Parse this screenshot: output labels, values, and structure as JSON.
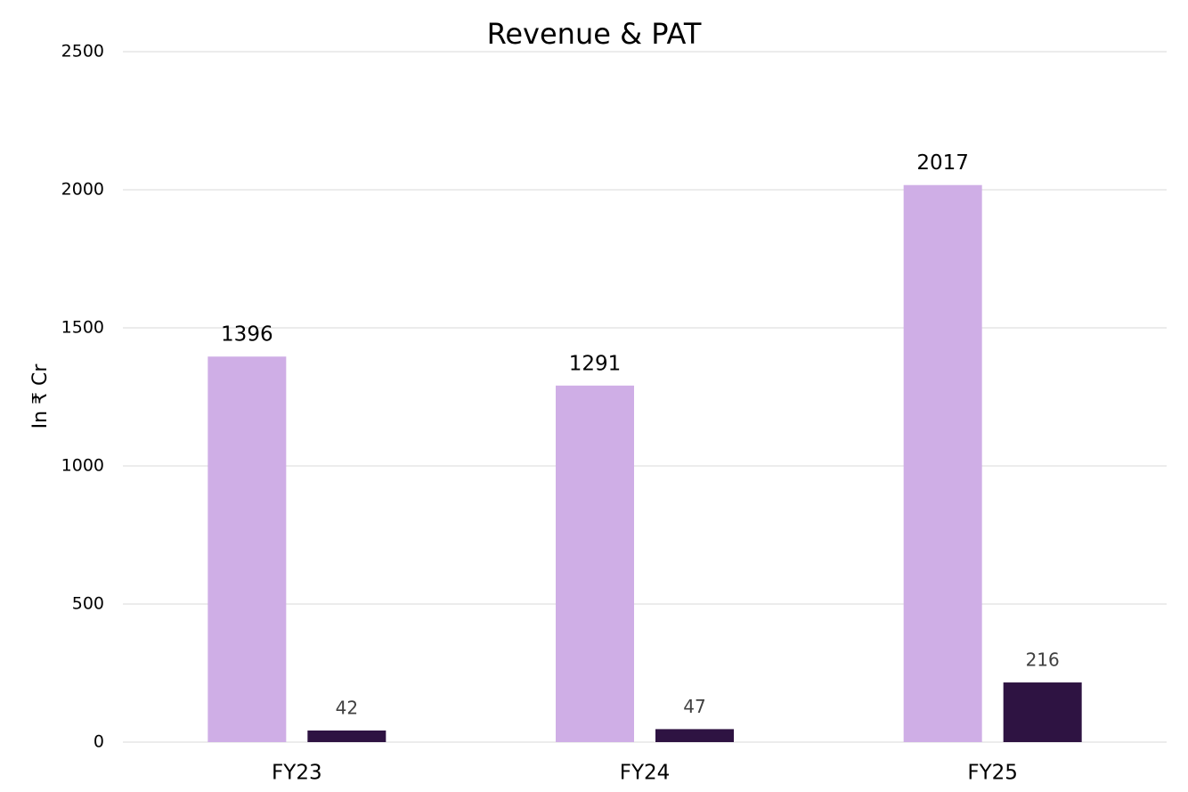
{
  "chart_data": {
    "type": "bar",
    "title": "Revenue & PAT",
    "y_label": "In ₹ Cr",
    "categories": [
      "FY23",
      "FY24",
      "FY25"
    ],
    "series": [
      {
        "color": "#cfaee6",
        "values": [
          1396,
          1291,
          2017
        ]
      },
      {
        "color": "#2e1342",
        "values": [
          42,
          47,
          216
        ]
      }
    ],
    "ylim": [
      0,
      2500
    ],
    "yticks": [
      0,
      500,
      1000,
      1500,
      2000,
      2500
    ],
    "grid": true
  }
}
